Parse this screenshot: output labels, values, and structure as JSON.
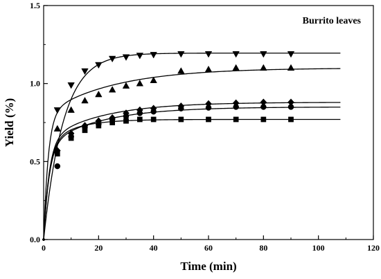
{
  "chart_data": {
    "type": "scatter",
    "annotation": "Burrito leaves",
    "xlabel": "Time (min)",
    "ylabel": "Yield (%)",
    "xlim": [
      0,
      120
    ],
    "ylim": [
      0,
      1.5
    ],
    "xticks": [
      0,
      20,
      40,
      60,
      80,
      100,
      120
    ],
    "yticks": [
      0.0,
      0.5,
      1.0,
      1.5
    ],
    "xtick_labels": [
      "0",
      "20",
      "40",
      "60",
      "80",
      "100",
      "120"
    ],
    "ytick_labels": [
      "0.0",
      "0.5",
      "1.0",
      "1.5"
    ],
    "grid": false,
    "series": [
      {
        "marker": "triangle-down",
        "x": [
          0,
          5,
          10,
          15,
          20,
          25,
          30,
          35,
          40,
          50,
          60,
          70,
          80,
          90
        ],
        "y": [
          0,
          0.83,
          0.99,
          1.08,
          1.12,
          1.16,
          1.17,
          1.18,
          1.185,
          1.19,
          1.19,
          1.19,
          1.19,
          1.19
        ],
        "fit": {
          "model": "first-order",
          "yinf": 1.195,
          "k": 0.14,
          "xmax": 108
        }
      },
      {
        "marker": "triangle-up",
        "x": [
          0,
          5,
          10,
          15,
          20,
          25,
          30,
          35,
          40,
          50,
          60,
          70,
          80,
          90
        ],
        "y": [
          0,
          0.71,
          0.83,
          0.89,
          0.93,
          0.96,
          0.985,
          1.0,
          1.02,
          1.08,
          1.09,
          1.1,
          1.1,
          1.1
        ],
        "fit": {
          "model": "two-phase",
          "wash": 0.8,
          "k1": 0.6,
          "diff": 0.3,
          "k2": 0.04,
          "xmax": 108
        }
      },
      {
        "marker": "diamond",
        "x": [
          0,
          5,
          10,
          15,
          20,
          25,
          30,
          35,
          40,
          50,
          60,
          70,
          80,
          90
        ],
        "y": [
          0,
          0.57,
          0.68,
          0.73,
          0.76,
          0.78,
          0.81,
          0.83,
          0.84,
          0.855,
          0.87,
          0.875,
          0.88,
          0.88
        ],
        "fit": {
          "model": "two-phase",
          "wash": 0.63,
          "k1": 0.5,
          "diff": 0.25,
          "k2": 0.05,
          "xmax": 108
        }
      },
      {
        "marker": "circle",
        "x": [
          0,
          5,
          10,
          15,
          20,
          25,
          30,
          35,
          40,
          50,
          60,
          70,
          80,
          90
        ],
        "y": [
          0,
          0.47,
          0.66,
          0.72,
          0.74,
          0.77,
          0.79,
          0.81,
          0.82,
          0.84,
          0.845,
          0.85,
          0.85,
          0.85
        ],
        "fit": {
          "model": "two-phase",
          "wash": 0.6,
          "k1": 0.5,
          "diff": 0.25,
          "k2": 0.05,
          "xmax": 108
        }
      },
      {
        "marker": "square",
        "x": [
          0,
          5,
          10,
          15,
          20,
          25,
          30,
          35,
          40,
          50,
          60,
          70,
          80,
          90
        ],
        "y": [
          0,
          0.55,
          0.65,
          0.7,
          0.73,
          0.75,
          0.76,
          0.77,
          0.77,
          0.77,
          0.77,
          0.77,
          0.77,
          0.77
        ],
        "fit": {
          "model": "two-phase",
          "wash": 0.6,
          "k1": 0.5,
          "diff": 0.17,
          "k2": 0.1,
          "xmax": 108
        }
      }
    ],
    "colors": {
      "marks": "#000000",
      "background": "#ffffff"
    }
  }
}
